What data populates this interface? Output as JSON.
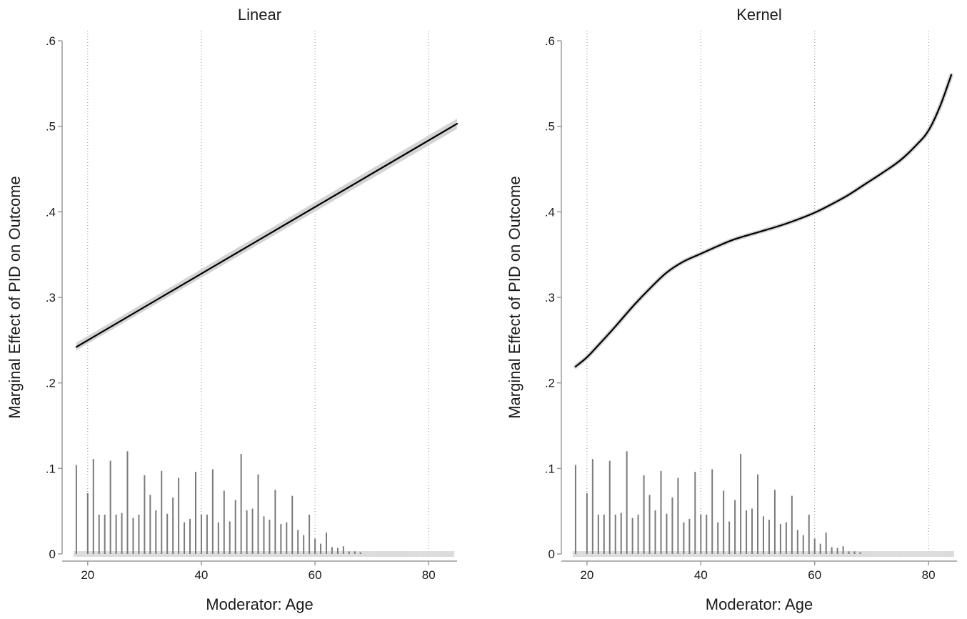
{
  "chart_data": [
    {
      "type": "line",
      "title": "Linear",
      "xlabel": "Moderator: Age",
      "ylabel": "Marginal Effect of PID on Outcome",
      "xlim": [
        15.5,
        85
      ],
      "ylim": [
        0,
        0.6
      ],
      "xticks": [
        20,
        40,
        60,
        80
      ],
      "xtick_labels": [
        "20",
        "40",
        "60",
        "80"
      ],
      "yticks": [
        0,
        0.1,
        0.2,
        0.3,
        0.4,
        0.5,
        0.6
      ],
      "ytick_labels": [
        "0",
        ".1",
        ".2",
        ".3",
        ".4",
        ".5",
        ".6"
      ],
      "grid": "vertical dotted lines at 20, 40, 60, 80",
      "line": {
        "x": [
          18,
          85
        ],
        "y": [
          0.242,
          0.503
        ],
        "ci_lower": [
          0.238,
          0.497
        ],
        "ci_upper": [
          0.247,
          0.509
        ]
      },
      "histogram": {
        "x": [
          18,
          19,
          20,
          21,
          22,
          23,
          24,
          25,
          26,
          27,
          28,
          29,
          30,
          31,
          32,
          33,
          34,
          35,
          36,
          37,
          38,
          39,
          40,
          41,
          42,
          43,
          44,
          45,
          46,
          47,
          48,
          49,
          50,
          51,
          52,
          53,
          54,
          55,
          56,
          57,
          58,
          59,
          60,
          61,
          62,
          63,
          64,
          65,
          66,
          67,
          68,
          69,
          70,
          71,
          72,
          73,
          74,
          75,
          76,
          77,
          78,
          79,
          80,
          81,
          82,
          83,
          84
        ],
        "y": [
          0.104,
          0,
          0.071,
          0.111,
          0.046,
          0.046,
          0.109,
          0.046,
          0.048,
          0.12,
          0.042,
          0.046,
          0.092,
          0.069,
          0.051,
          0.097,
          0.047,
          0.066,
          0.089,
          0.037,
          0.041,
          0.096,
          0.046,
          0.046,
          0.099,
          0.037,
          0.074,
          0.038,
          0.063,
          0.117,
          0.051,
          0.053,
          0.093,
          0.044,
          0.04,
          0.075,
          0.035,
          0.037,
          0.068,
          0.028,
          0.022,
          0.046,
          0.018,
          0.012,
          0.025,
          0.008,
          0.007,
          0.009,
          0.003,
          0.003,
          0.002,
          0,
          0,
          0,
          0,
          0,
          0,
          0,
          0,
          0,
          0,
          0,
          0,
          0,
          0,
          0,
          0
        ]
      }
    },
    {
      "type": "line",
      "title": "Kernel",
      "xlabel": "Moderator: Age",
      "ylabel": "Marginal Effect of PID on Outcome",
      "xlim": [
        15.5,
        85
      ],
      "ylim": [
        0,
        0.6
      ],
      "xticks": [
        20,
        40,
        60,
        80
      ],
      "xtick_labels": [
        "20",
        "40",
        "60",
        "80"
      ],
      "yticks": [
        0,
        0.1,
        0.2,
        0.3,
        0.4,
        0.5,
        0.6
      ],
      "ytick_labels": [
        "0",
        ".1",
        ".2",
        ".3",
        ".4",
        ".5",
        ".6"
      ],
      "grid": "vertical dotted lines at 20, 40, 60, 80",
      "line": {
        "x": [
          18,
          20,
          22,
          25,
          28,
          31,
          34,
          37,
          40,
          43,
          46,
          50,
          54,
          57,
          60,
          63,
          66,
          69,
          72,
          75,
          78,
          80,
          82,
          84
        ],
        "y": [
          0.219,
          0.23,
          0.244,
          0.266,
          0.289,
          0.31,
          0.329,
          0.342,
          0.351,
          0.36,
          0.368,
          0.376,
          0.384,
          0.391,
          0.399,
          0.409,
          0.42,
          0.433,
          0.446,
          0.46,
          0.479,
          0.495,
          0.523,
          0.56
        ],
        "ci_band_width": 0.004
      },
      "histogram": {
        "x": [
          18,
          19,
          20,
          21,
          22,
          23,
          24,
          25,
          26,
          27,
          28,
          29,
          30,
          31,
          32,
          33,
          34,
          35,
          36,
          37,
          38,
          39,
          40,
          41,
          42,
          43,
          44,
          45,
          46,
          47,
          48,
          49,
          50,
          51,
          52,
          53,
          54,
          55,
          56,
          57,
          58,
          59,
          60,
          61,
          62,
          63,
          64,
          65,
          66,
          67,
          68,
          69,
          70,
          71,
          72,
          73,
          74,
          75,
          76,
          77,
          78,
          79,
          80,
          81,
          82,
          83,
          84
        ],
        "y": [
          0.104,
          0,
          0.071,
          0.111,
          0.046,
          0.046,
          0.109,
          0.046,
          0.048,
          0.12,
          0.042,
          0.046,
          0.092,
          0.069,
          0.051,
          0.097,
          0.047,
          0.066,
          0.089,
          0.037,
          0.041,
          0.096,
          0.046,
          0.046,
          0.099,
          0.037,
          0.074,
          0.038,
          0.063,
          0.117,
          0.051,
          0.053,
          0.093,
          0.044,
          0.04,
          0.075,
          0.035,
          0.037,
          0.068,
          0.028,
          0.022,
          0.046,
          0.018,
          0.012,
          0.025,
          0.008,
          0.007,
          0.009,
          0.003,
          0.003,
          0.002,
          0,
          0,
          0,
          0,
          0,
          0,
          0,
          0,
          0,
          0,
          0,
          0,
          0,
          0,
          0,
          0
        ]
      }
    }
  ],
  "colors": {
    "line": "#000000",
    "ci_band": "#d4d4d4",
    "histogram": "#7a7a7a",
    "baseline_marks": "#dcdcdc",
    "axis": "#9a9a9a",
    "grid": "#8c8c8c",
    "text": "#1a1a1a"
  }
}
